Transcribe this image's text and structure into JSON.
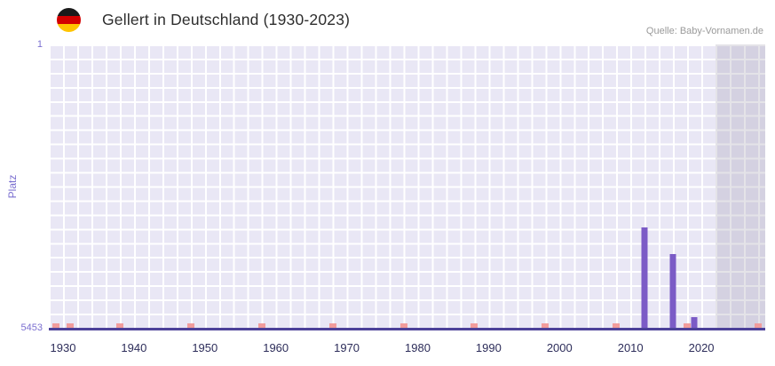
{
  "header": {
    "title": "Gellert in Deutschland (1930-2023)",
    "source": "Quelle: Baby-Vornamen.de",
    "flag_icon": "german-flag"
  },
  "chart_data": {
    "type": "bar",
    "title": "Gellert in Deutschland (1930-2023)",
    "xlabel": "",
    "ylabel": "Platz",
    "y_axis": {
      "top_tick": "1",
      "bottom_tick": "5453",
      "min": 1,
      "max": 5453,
      "inverted": true
    },
    "x_axis": {
      "min": 1928,
      "max": 2029,
      "ticks": [
        1930,
        1940,
        1950,
        1960,
        1970,
        1980,
        1990,
        2000,
        2010,
        2020
      ]
    },
    "series": [
      {
        "name": "Platz",
        "points": [
          {
            "year": 2012,
            "rank": 3530
          },
          {
            "year": 2016,
            "rank": 4040
          },
          {
            "year": 2019,
            "rank": 5250
          }
        ]
      }
    ],
    "no_data_marks_years": [
      1929,
      1931,
      1938,
      1948,
      1958,
      1968,
      1978,
      1988,
      1998,
      2008,
      2018,
      2028
    ],
    "shaded_region": {
      "from": 2022,
      "to": 2029
    },
    "grid": true,
    "legend": false
  },
  "colors": {
    "bar": "#7b5bc6",
    "plot_background": "#e9e7f5",
    "grid_line": "#ffffff",
    "shaded_region": "rgba(158,155,172,0.28)",
    "axis_line": "#4c4199",
    "y_label": "#7b6fd0",
    "x_tick_label": "#2d2d5a",
    "no_data_mark": "#f19c9c",
    "title": "#2d2d2d",
    "source": "#9a9a9a"
  }
}
